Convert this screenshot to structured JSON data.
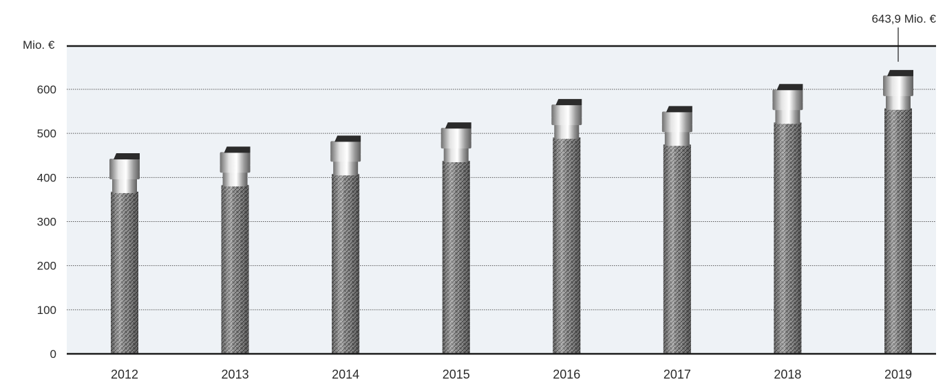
{
  "chart_data": {
    "type": "bar",
    "unit_label": "Mio. €",
    "categories": [
      "2012",
      "2013",
      "2014",
      "2015",
      "2016",
      "2017",
      "2018",
      "2019"
    ],
    "values": [
      455,
      470,
      495,
      525,
      578,
      562,
      612,
      643.9
    ],
    "ylim": [
      0,
      700
    ],
    "yticks": [
      0,
      100,
      200,
      300,
      400,
      500,
      600
    ],
    "grid": true,
    "annotation": {
      "category": "2019",
      "text": "643,9 Mio. €"
    },
    "colors": {
      "plot_background": "#eef2f6",
      "axis": "#1a1a1a",
      "grid": "#555555",
      "hose_dark": "#5a5a5a",
      "hose_light": "#b5b5b5",
      "fitting_dark": "#6f6f6f",
      "fitting_light": "#e4e4e4",
      "cap": "#2b2b2b"
    }
  }
}
